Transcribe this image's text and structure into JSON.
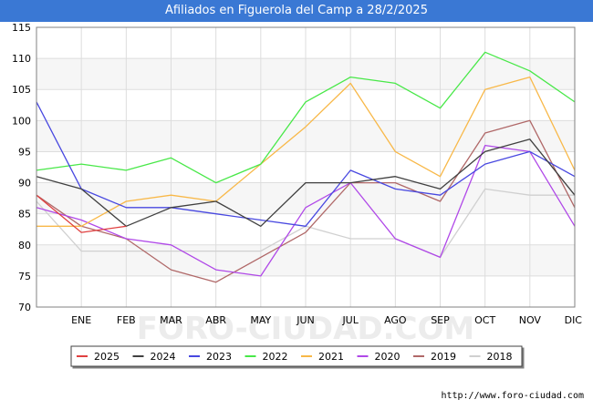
{
  "title": "Afiliados en Figuerola del Camp a 28/2/2025",
  "source": "http://www.foro-ciudad.com",
  "watermark": "FORO-CIUDAD.COM",
  "chart_data": {
    "type": "line",
    "categories": [
      "",
      "ENE",
      "FEB",
      "MAR",
      "ABR",
      "MAY",
      "JUN",
      "JUL",
      "AGO",
      "SEP",
      "OCT",
      "NOV",
      "DIC"
    ],
    "ylim": [
      70,
      115
    ],
    "yticks": [
      70,
      75,
      80,
      85,
      90,
      95,
      100,
      105,
      110,
      115
    ],
    "grid": true,
    "legend_position": "bottom",
    "series": [
      {
        "name": "2025",
        "color": "#e04040",
        "values": [
          88,
          82,
          83,
          null,
          null,
          null,
          null,
          null,
          null,
          null,
          null,
          null,
          null
        ]
      },
      {
        "name": "2024",
        "color": "#404040",
        "values": [
          91,
          89,
          83,
          86,
          87,
          83,
          90,
          90,
          91,
          89,
          95,
          97,
          88
        ]
      },
      {
        "name": "2023",
        "color": "#4848e0",
        "values": [
          103,
          89,
          86,
          86,
          85,
          84,
          83,
          92,
          89,
          88,
          93,
          95,
          91
        ]
      },
      {
        "name": "2022",
        "color": "#48e848",
        "values": [
          92,
          93,
          92,
          94,
          90,
          93,
          103,
          107,
          106,
          102,
          111,
          108,
          103
        ]
      },
      {
        "name": "2021",
        "color": "#f8b848",
        "values": [
          83,
          83,
          87,
          88,
          87,
          93,
          99,
          106,
          95,
          91,
          105,
          107,
          92
        ]
      },
      {
        "name": "2020",
        "color": "#b048e8",
        "values": [
          86,
          84,
          81,
          80,
          76,
          75,
          86,
          90,
          81,
          78,
          96,
          95,
          83
        ]
      },
      {
        "name": "2019",
        "color": "#b06868",
        "values": [
          88,
          83,
          81,
          76,
          74,
          78,
          82,
          90,
          90,
          87,
          98,
          100,
          86
        ]
      },
      {
        "name": "2018",
        "color": "#d0d0d0",
        "values": [
          87,
          79,
          79,
          79,
          79,
          79,
          83,
          81,
          81,
          78,
          89,
          88,
          88
        ]
      }
    ]
  }
}
